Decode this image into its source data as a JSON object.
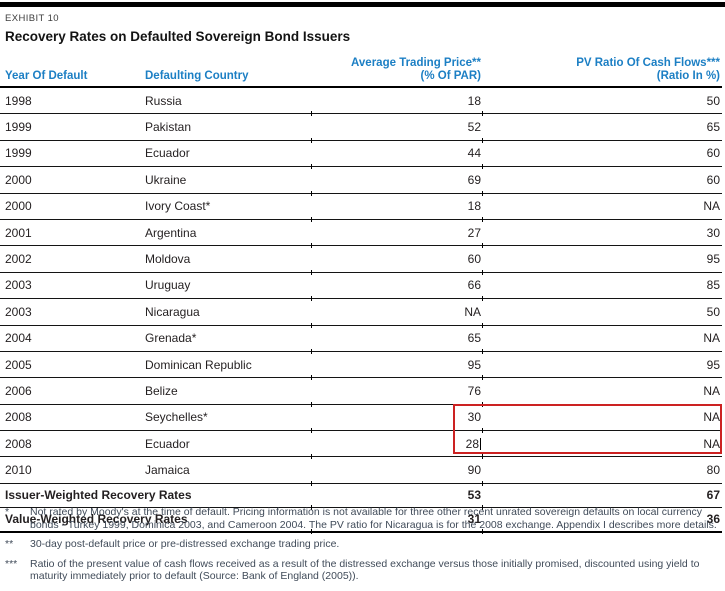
{
  "exhibit_label": "EXHIBIT 10",
  "title": "Recovery Rates on Defaulted Sovereign Bond Issuers",
  "colors": {
    "header_blue": "#1c7fc4",
    "annotation_red": "#cc2222",
    "footnote_text": "#404b59",
    "body_text": "#231f20"
  },
  "table": {
    "columns": {
      "year": "Year Of Default",
      "country": "Defaulting Country",
      "price_line1": "Average Trading Price**",
      "price_line2": "(% Of  PAR)",
      "pv_line1": "PV Ratio Of Cash Flows***",
      "pv_line2": "(Ratio In %)"
    },
    "rows": [
      {
        "year": "1998",
        "country": "Russia",
        "price": "18",
        "pv": "50"
      },
      {
        "year": "1999",
        "country": "Pakistan",
        "price": "52",
        "pv": "65"
      },
      {
        "year": "1999",
        "country": "Ecuador",
        "price": "44",
        "pv": "60"
      },
      {
        "year": "2000",
        "country": "Ukraine",
        "price": "69",
        "pv": "60"
      },
      {
        "year": "2000",
        "country": "Ivory Coast*",
        "price": "18",
        "pv": "NA"
      },
      {
        "year": "2001",
        "country": "Argentina",
        "price": "27",
        "pv": "30"
      },
      {
        "year": "2002",
        "country": "Moldova",
        "price": "60",
        "pv": "95"
      },
      {
        "year": "2003",
        "country": "Uruguay",
        "price": "66",
        "pv": "85"
      },
      {
        "year": "2003",
        "country": "Nicaragua",
        "price": "NA",
        "pv": "50"
      },
      {
        "year": "2004",
        "country": "Grenada*",
        "price": "65",
        "pv": "NA"
      },
      {
        "year": "2005",
        "country": "Dominican Republic",
        "price": "95",
        "pv": "95"
      },
      {
        "year": "2006",
        "country": "Belize",
        "price": "76",
        "pv": "NA"
      },
      {
        "year": "2008",
        "country": "Seychelles*",
        "price": "30",
        "pv": "NA"
      },
      {
        "year": "2008",
        "country": "Ecuador",
        "price": "28",
        "pv": "NA"
      },
      {
        "year": "2010",
        "country": "Jamaica",
        "price": "90",
        "pv": "80"
      }
    ],
    "edited_row_index": 13,
    "edited_cell": {
      "row_year": "2008",
      "row_country": "Ecuador",
      "column": "price",
      "value": "28",
      "caret_visible": true
    },
    "summary": [
      {
        "label": "Issuer-Weighted Recovery Rates",
        "price": "53",
        "pv": "67"
      },
      {
        "label": "Value-Weighted Recovery Rates",
        "price": "31",
        "pv": "36"
      }
    ]
  },
  "annotation": {
    "type": "red-highlight-box",
    "color": "#cc2222",
    "covers": [
      "2008 Ecuador price and PV cells",
      "2010 Jamaica price and PV cells"
    ]
  },
  "footnotes": [
    {
      "marker": "*",
      "text": "Not rated by Moody's at the time of default. Pricing information is not available for three other recent unrated sovereign defaults on local currency bonds - Turkey 1999, Dominica 2003, and Cameroon 2004. The PV ratio for Nicaragua is for the 2008 exchange. Appendix I describes more details."
    },
    {
      "marker": "**",
      "text": "30-day post-default price or pre-distressed exchange trading price."
    },
    {
      "marker": "***",
      "text": "Ratio of the present value of cash flows received as a result of the distressed exchange versus those initially promised, discounted using yield to maturity immediately prior to default (Source: Bank of England (2005))."
    }
  ]
}
